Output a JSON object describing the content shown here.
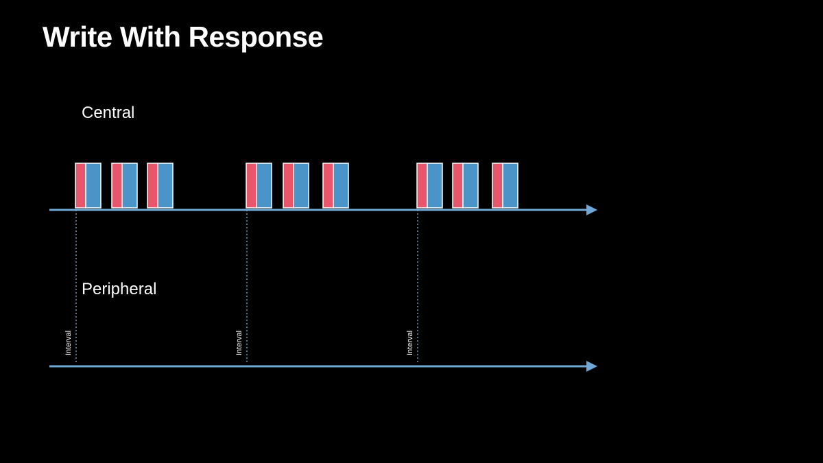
{
  "title": "Write With Response",
  "lanes": {
    "central": {
      "label": "Central"
    },
    "peripheral": {
      "label": "Peripheral"
    }
  },
  "connection_intervals": [
    {
      "label": "Interval",
      "packets": 3
    },
    {
      "label": "Interval",
      "packets": 3
    },
    {
      "label": "Interval",
      "packets": 3
    }
  ],
  "colors": {
    "background": "#000000",
    "timeline_axis": "#6fa8d6",
    "packet_header": "#e8566b",
    "packet_payload": "#4a94c7",
    "packet_outline": "#ffffff",
    "interval_marker": "#8fbfe6",
    "text": "#ffffff"
  },
  "icons": {
    "arrowhead": "arrow-right-icon"
  }
}
